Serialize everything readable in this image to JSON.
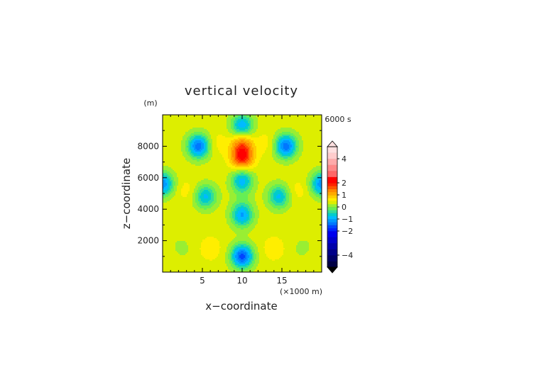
{
  "chart_data": {
    "type": "heatmap",
    "title": "vertical velocity",
    "time_label": "6000 s",
    "xlabel": "x−coordinate",
    "ylabel": "z−coordinate",
    "x_unit": "(×1000 m)",
    "y_unit": "(m)",
    "xlim": [
      0,
      20
    ],
    "ylim": [
      0,
      10000
    ],
    "x_ticks": [
      5,
      10,
      15
    ],
    "x_tick_labels": [
      "5",
      "10",
      "15"
    ],
    "y_ticks": [
      2000,
      4000,
      6000,
      8000
    ],
    "y_tick_labels": [
      "2000",
      "4000",
      "6000",
      "8000"
    ],
    "colorbar": {
      "range": [
        -5,
        5
      ],
      "ticks": [
        4,
        2,
        1,
        0,
        -1,
        -2,
        -4
      ],
      "tick_labels": [
        "4",
        "2",
        "1",
        "0",
        "−1",
        "−2",
        "−4"
      ],
      "levels": [
        -5,
        -4.5,
        -4,
        -3.5,
        -3,
        -2.5,
        -2,
        -1.75,
        -1.5,
        -1.25,
        -1,
        -0.75,
        -0.5,
        -0.25,
        0,
        0.25,
        0.5,
        0.75,
        1,
        1.25,
        1.5,
        1.75,
        2,
        2.5,
        3,
        3.5,
        4,
        4.5,
        5
      ],
      "colors": [
        "#000044",
        "#000066",
        "#000088",
        "#0000aa",
        "#0000cc",
        "#0000ee",
        "#0022ff",
        "#0044ff",
        "#0077ff",
        "#0099ff",
        "#00bbff",
        "#00cccc",
        "#33dd99",
        "#66ee55",
        "#99ee33",
        "#ddee00",
        "#ffee00",
        "#ffcc00",
        "#ffaa00",
        "#ff8800",
        "#ff5500",
        "#ff2200",
        "#ff0000",
        "#ff6666",
        "#ff8888",
        "#ffaaaa",
        "#ffcccc",
        "#ffe0e0"
      ],
      "over_color": "#ffe0e0",
      "under_color": "#000000"
    },
    "features": [
      {
        "x": 10.0,
        "z": 7300,
        "value": 2.0
      },
      {
        "x": 10.0,
        "z": 8200,
        "value": 1.3
      },
      {
        "x": 10.0,
        "z": 9300,
        "value": -1.0
      },
      {
        "x": 4.5,
        "z": 8000,
        "value": -1.4
      },
      {
        "x": 15.5,
        "z": 8000,
        "value": -1.4
      },
      {
        "x": 7.0,
        "z": 8200,
        "value": 0.6
      },
      {
        "x": 13.0,
        "z": 8200,
        "value": 0.6
      },
      {
        "x": 0.0,
        "z": 5600,
        "value": -1.2
      },
      {
        "x": 20.0,
        "z": 5600,
        "value": -1.2
      },
      {
        "x": 3.0,
        "z": 5200,
        "value": 0.6
      },
      {
        "x": 17.0,
        "z": 5200,
        "value": 0.6
      },
      {
        "x": 5.4,
        "z": 4800,
        "value": -0.8
      },
      {
        "x": 14.6,
        "z": 4800,
        "value": -0.8
      },
      {
        "x": 10.0,
        "z": 5800,
        "value": -0.9
      },
      {
        "x": 10.0,
        "z": 3600,
        "value": -1.0
      },
      {
        "x": 10.0,
        "z": 1000,
        "value": -1.6
      },
      {
        "x": 10.0,
        "z": 4500,
        "value": 0.2
      },
      {
        "x": 2.5,
        "z": 1500,
        "value": 0.2
      },
      {
        "x": 17.5,
        "z": 1500,
        "value": 0.2
      },
      {
        "x": 6.0,
        "z": 1500,
        "value": 0.7
      },
      {
        "x": 14.0,
        "z": 1500,
        "value": 0.7
      },
      {
        "x": 1.0,
        "z": 2500,
        "value": 0.3
      },
      {
        "x": 19.0,
        "z": 2500,
        "value": 0.3
      },
      {
        "x": 1.2,
        "z": 9300,
        "value": 0.3
      },
      {
        "x": 18.8,
        "z": 9300,
        "value": 0.3
      }
    ],
    "grid": false,
    "legend": "colorbar right"
  }
}
